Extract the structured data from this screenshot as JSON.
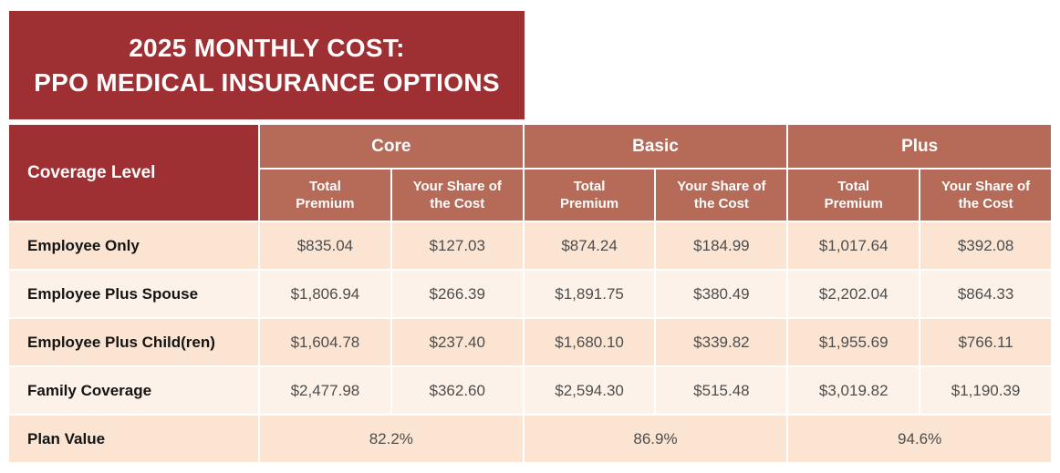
{
  "title": {
    "line1": "2025 MONTHLY COST:",
    "line2": "PPO MEDICAL INSURANCE OPTIONS"
  },
  "colors": {
    "banner_maroon": "#9e2f33",
    "subheader_terracotta": "#b66a58",
    "row_peach_dark": "#fbe4d1",
    "row_peach_light": "#fdf2e9",
    "value_text": "#4d4d4d",
    "header_text": "#ffffff"
  },
  "table": {
    "row_header": "Coverage Level",
    "groups": [
      {
        "name": "Core"
      },
      {
        "name": "Basic"
      },
      {
        "name": "Plus"
      }
    ],
    "columns": {
      "total_premium": "Total Premium",
      "your_share": "Your Share of the Cost"
    },
    "rows": [
      {
        "label": "Employee Only",
        "values": [
          "$835.04",
          "$127.03",
          "$874.24",
          "$184.99",
          "$1,017.64",
          "$392.08"
        ]
      },
      {
        "label": "Employee Plus Spouse",
        "values": [
          "$1,806.94",
          "$266.39",
          "$1,891.75",
          "$380.49",
          "$2,202.04",
          "$864.33"
        ]
      },
      {
        "label": "Employee Plus Child(ren)",
        "values": [
          "$1,604.78",
          "$237.40",
          "$1,680.10",
          "$339.82",
          "$1,955.69",
          "$766.11"
        ]
      },
      {
        "label": "Family Coverage",
        "values": [
          "$2,477.98",
          "$362.60",
          "$2,594.30",
          "$515.48",
          "$3,019.82",
          "$1,190.39"
        ]
      }
    ],
    "plan_value": {
      "label": "Plan Value",
      "values": [
        "82.2%",
        "86.9%",
        "94.6%"
      ]
    }
  },
  "chart_data": {
    "type": "table",
    "title": "2025 MONTHLY COST: PPO MEDICAL INSURANCE OPTIONS",
    "column_groups": [
      "Core",
      "Basic",
      "Plus"
    ],
    "columns": [
      "Core Total Premium",
      "Core Your Share of the Cost",
      "Basic Total Premium",
      "Basic Your Share of the Cost",
      "Plus Total Premium",
      "Plus Your Share of the Cost"
    ],
    "row_header": "Coverage Level",
    "rows": [
      [
        "Employee Only",
        835.04,
        127.03,
        874.24,
        184.99,
        1017.64,
        392.08
      ],
      [
        "Employee Plus Spouse",
        1806.94,
        266.39,
        1891.75,
        380.49,
        2202.04,
        864.33
      ],
      [
        "Employee Plus Child(ren)",
        1604.78,
        237.4,
        1680.1,
        339.82,
        1955.69,
        766.11
      ],
      [
        "Family Coverage",
        2477.98,
        362.6,
        2594.3,
        515.48,
        3019.82,
        1190.39
      ]
    ],
    "plan_value_percent": {
      "Core": 82.2,
      "Basic": 86.9,
      "Plus": 94.6
    }
  }
}
